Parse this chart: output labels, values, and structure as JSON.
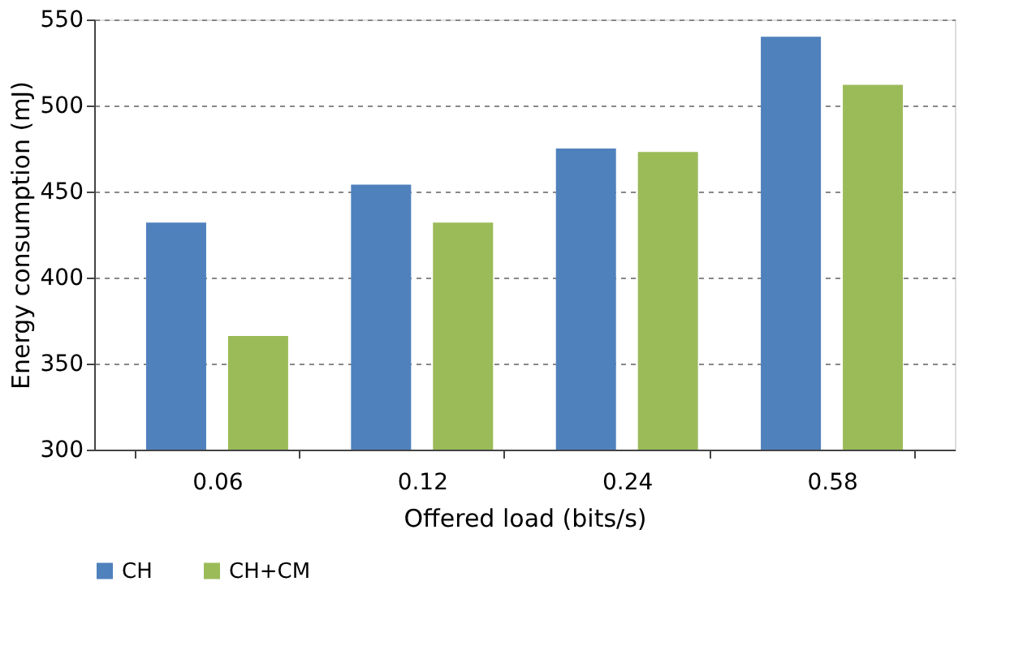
{
  "chart_data": {
    "type": "bar",
    "xlabel": "Offered load (bits/s)",
    "ylabel": "Energy consumption (mJ)",
    "categories": [
      "0.06",
      "0.12",
      "0.24",
      "0.58"
    ],
    "series": [
      {
        "name": "CH",
        "color": "#4f81bd",
        "values": [
          432,
          454,
          475,
          540
        ]
      },
      {
        "name": "CH+CM",
        "color": "#9bbb59",
        "values": [
          366,
          432,
          473,
          512
        ]
      }
    ],
    "ylim": [
      300,
      550
    ],
    "yticks": [
      300,
      350,
      400,
      450,
      500,
      550
    ],
    "grid": "y",
    "legend": "bottom left"
  }
}
